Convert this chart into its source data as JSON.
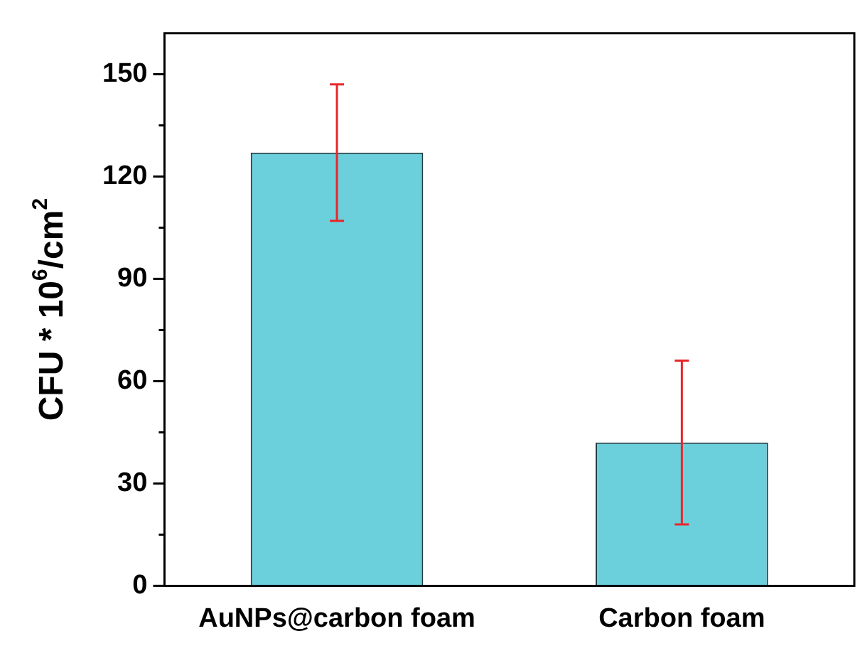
{
  "chart_data": {
    "type": "bar",
    "ylabel": "CFU * 10$^{6}$/cm$^{2}$",
    "categories": [
      "AuNPs@carbon foam",
      "Carbon foam"
    ],
    "values": [
      127,
      42
    ],
    "errors": [
      20,
      24
    ],
    "color": "#6ccfdc",
    "ylim": [
      0,
      162
    ],
    "yticks": [
      0,
      {
        "value": 15,
        "label": null
      },
      30,
      {
        "value": 45,
        "label": null
      },
      60,
      {
        "value": 75,
        "label": null
      },
      90,
      {
        "value": 105,
        "label": null
      },
      120,
      {
        "value": 135,
        "label": null
      },
      150
    ],
    "grid": false,
    "legend": false
  }
}
